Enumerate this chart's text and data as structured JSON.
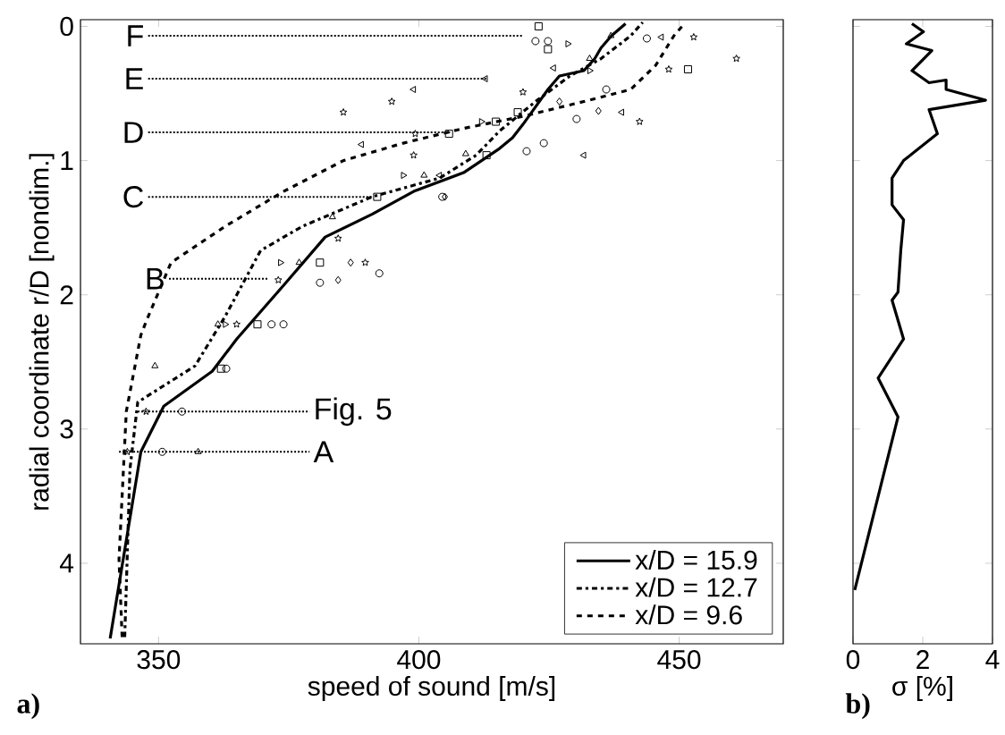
{
  "chart_data": [
    {
      "type": "line",
      "xlabel": "speed of sound [m/s]",
      "ylabel": "radial coordinate r/D [nondim.]",
      "xlim": [
        335,
        470
      ],
      "ylim": [
        4.6,
        -0.05
      ],
      "xticks": [
        350,
        400,
        450
      ],
      "yticks": [
        0,
        1,
        2,
        3,
        4
      ],
      "legend": "bottom right",
      "series": [
        {
          "name": "x/D = 15.9",
          "type": "line",
          "line_style": "solid",
          "color": "#000000",
          "x": [
            340.7,
            346.6,
            351,
            360.3,
            365,
            374,
            382,
            391,
            399,
            408.6,
            415.5,
            418,
            420,
            422.4,
            424.8,
            427,
            431.7,
            433.8,
            435,
            437,
            439.7
          ],
          "values": [
            4.56,
            3.17,
            2.83,
            2.57,
            2.33,
            1.93,
            1.57,
            1.4,
            1.23,
            1.09,
            0.91,
            0.83,
            0.73,
            0.6,
            0.47,
            0.37,
            0.33,
            0.24,
            0.16,
            0.07,
            -0.02
          ]
        },
        {
          "name": "x/D = 12.7",
          "type": "line",
          "line_style": "dashdot",
          "color": "#000000",
          "x": [
            343.5,
            344.5,
            346,
            357,
            362.8,
            369.6,
            377.6,
            391,
            404,
            411,
            415.5,
            422.4,
            429,
            435,
            440.7,
            443
          ],
          "values": [
            4.55,
            3.3,
            2.8,
            2.53,
            2.16,
            1.67,
            1.49,
            1.27,
            1.13,
            0.96,
            0.78,
            0.56,
            0.37,
            0.24,
            0.07,
            -0.03
          ]
        },
        {
          "name": "x/D = 9.6",
          "type": "line",
          "line_style": "dashed",
          "color": "#000000",
          "x": [
            343,
            342.4,
            343.8,
            346.6,
            347.6,
            352.4,
            362.8,
            374,
            385.5,
            397,
            408.6,
            420,
            431.7,
            440.7,
            445.5,
            449,
            451
          ],
          "values": [
            4.55,
            3.97,
            2.87,
            2.3,
            2.2,
            1.76,
            1.49,
            1.23,
            1.0,
            0.87,
            0.76,
            0.67,
            0.56,
            0.47,
            0.29,
            0.07,
            -0.02
          ]
        },
        {
          "type": "scatter",
          "marker": "star",
          "color": "#000000",
          "x": [
            452.8,
            461,
            448,
            442.4,
            420,
            394.8,
            385.5,
            399.3,
            399,
            384.5,
            389.7,
            373,
            365,
            347.6,
            344
          ],
          "values": [
            0.08,
            0.24,
            0.32,
            0.71,
            0.49,
            0.56,
            0.64,
            0.8,
            0.96,
            1.58,
            1.76,
            1.89,
            2.22,
            2.87,
            3.17
          ]
        },
        {
          "type": "scatter",
          "marker": "circle",
          "color": "#000000",
          "x": [
            422.4,
            424.8,
            430.3,
            420.7,
            424,
            404.5,
            392.4,
            381,
            371.7,
            374,
            363,
            354.5,
            350.7,
            443.8,
            436
          ],
          "values": [
            0.11,
            0.11,
            0.69,
            0.93,
            0.87,
            1.27,
            1.84,
            1.91,
            2.22,
            2.22,
            2.55,
            2.87,
            3.17,
            0.09,
            0.47
          ]
        },
        {
          "type": "scatter",
          "marker": "triangle",
          "color": "#000000",
          "x": [
            436.9,
            432.8,
            409,
            383.4,
            377,
            361.4,
            349.3,
            357.6,
            401
          ],
          "values": [
            0.07,
            0.24,
            0.95,
            1.42,
            1.76,
            2.22,
            2.53,
            3.17,
            1.11
          ]
        },
        {
          "type": "scatter",
          "marker": "square",
          "color": "#000000",
          "x": [
            423,
            424.8,
            451.7,
            419,
            414.8,
            405.8,
            392,
            381,
            369,
            362,
            413
          ],
          "values": [
            0.0,
            0.17,
            0.32,
            0.64,
            0.71,
            0.8,
            1.27,
            1.76,
            2.22,
            2.55,
            0.96
          ]
        },
        {
          "type": "scatter",
          "marker": "triangle-left",
          "color": "#000000",
          "x": [
            446.6,
            412.8,
            399,
            389,
            431.7,
            439,
            425.9,
            404
          ],
          "values": [
            0.08,
            0.39,
            0.47,
            0.88,
            0.96,
            0.64,
            0.31,
            1.11
          ]
        },
        {
          "type": "scatter",
          "marker": "triangle-right",
          "color": "#000000",
          "x": [
            428.6,
            412,
            397,
            373.4,
            362.8,
            432.8
          ],
          "values": [
            0.13,
            0.71,
            1.11,
            1.76,
            2.22,
            0.33
          ]
        },
        {
          "type": "scatter",
          "marker": "diamond",
          "color": "#000000",
          "x": [
            386.9,
            384.5,
            405,
            434.5,
            427
          ],
          "values": [
            1.76,
            1.89,
            1.27,
            0.63,
            0.56
          ]
        },
        {
          "type": "line",
          "line_style": "dotted",
          "color": "#000000",
          "x": [
            348,
            420
          ],
          "values": [
            0.07,
            0.07
          ]
        },
        {
          "type": "line",
          "line_style": "dotted",
          "color": "#000000",
          "x": [
            348,
            413
          ],
          "values": [
            0.39,
            0.39
          ]
        },
        {
          "type": "line",
          "line_style": "dotted",
          "color": "#000000",
          "x": [
            348,
            406
          ],
          "values": [
            0.79,
            0.79
          ]
        },
        {
          "type": "line",
          "line_style": "dotted",
          "color": "#000000",
          "x": [
            348,
            391
          ],
          "values": [
            1.27,
            1.27
          ]
        },
        {
          "type": "line",
          "line_style": "dotted",
          "color": "#000000",
          "x": [
            352,
            371
          ],
          "values": [
            1.88,
            1.88
          ]
        },
        {
          "type": "line",
          "line_style": "dotted",
          "color": "#000000",
          "x": [
            346,
            379
          ],
          "values": [
            2.87,
            2.87
          ]
        },
        {
          "type": "line",
          "line_style": "dotted",
          "color": "#000000",
          "x": [
            342.4,
            379
          ],
          "values": [
            3.17,
            3.17
          ]
        }
      ],
      "annotations": [
        {
          "text": "F",
          "x": 348,
          "y": 0.07
        },
        {
          "text": "E",
          "x": 348,
          "y": 0.39
        },
        {
          "text": "D",
          "x": 348,
          "y": 0.79
        },
        {
          "text": "C",
          "x": 348,
          "y": 1.27
        },
        {
          "text": "B",
          "x": 352,
          "y": 1.88
        },
        {
          "text": "Fig. 5",
          "x": 379,
          "y": 2.87
        },
        {
          "text": "A",
          "x": 379,
          "y": 3.17
        },
        "a)"
      ]
    },
    {
      "type": "line",
      "xlabel": "σ [%]",
      "xlim": [
        0,
        4
      ],
      "ylim": [
        4.6,
        -0.05
      ],
      "xticks": [
        0,
        2,
        4
      ],
      "yticks": [
        0,
        1,
        2,
        3,
        4
      ],
      "tick_labels": "x",
      "series": [
        {
          "color": "#000000",
          "x": [
            1.69,
            2.02,
            1.53,
            2.26,
            1.69,
            2.18,
            2.67,
            2.67,
            3.8,
            2.18,
            2.42,
            1.45,
            1.12,
            1.12,
            1.45,
            1.37,
            1.29,
            1.12,
            1.45,
            0.72,
            1.29,
            0.05
          ],
          "values": [
            -0.02,
            0.04,
            0.13,
            0.18,
            0.33,
            0.42,
            0.4,
            0.47,
            0.55,
            0.62,
            0.8,
            1.0,
            1.13,
            1.33,
            1.44,
            1.67,
            1.98,
            2.04,
            2.33,
            2.62,
            2.91,
            4.2
          ]
        }
      ],
      "annotations": [
        "b)"
      ]
    }
  ]
}
